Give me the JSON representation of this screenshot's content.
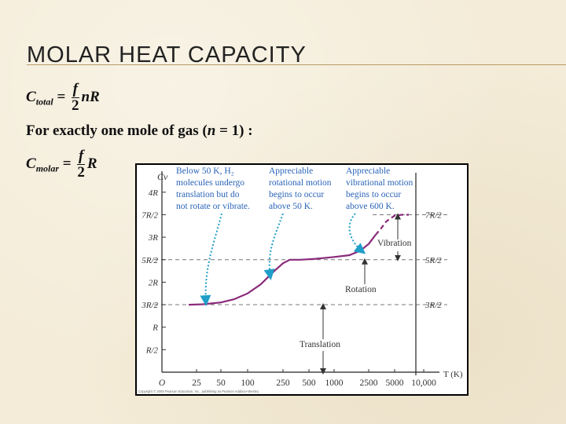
{
  "slide": {
    "title": "MOLAR HEAT CAPACITY",
    "eq1": {
      "lhs": "C",
      "sub": "total",
      "eq": " = ",
      "num": "f",
      "den": "2",
      "rhs": "nR"
    },
    "line2": {
      "pre": "For exactly one mole of gas (",
      "var": "n",
      "post": " = 1) :"
    },
    "eq3": {
      "lhs": "C",
      "sub": "molar",
      "eq": " = ",
      "num": "f",
      "den": "2",
      "rhs": "R"
    }
  },
  "colors": {
    "background": "#f4ecd8",
    "rule": "#b89a66",
    "curve": "#8a2a7a",
    "arrows": "#1e9ec8",
    "annotation_text": "#2a64b8"
  },
  "chart_data": {
    "type": "line",
    "ylabel": "Cv",
    "xlabel": "T (K)",
    "x_ticks": [
      "O",
      "25",
      "50",
      "100",
      "250",
      "500",
      "1000",
      "2500",
      "5000",
      "10,000"
    ],
    "y_ticks": [
      "4R",
      "7R/2",
      "3R",
      "5R/2",
      "2R",
      "3R/2",
      "R",
      "R/2"
    ],
    "y_ticks_right": [
      "7R/2",
      "5R/2",
      "3R/2"
    ],
    "y_unit": "R",
    "ylim": [
      0,
      4.25
    ],
    "x_scale": "log",
    "series": [
      {
        "x": [
          20,
          30,
          50,
          70,
          100,
          140,
          200,
          250,
          300,
          400,
          600,
          1000,
          1500,
          2000,
          2500,
          3000,
          3500,
          4000,
          5000,
          6000,
          7000
        ],
        "y": [
          1.5,
          1.51,
          1.55,
          1.62,
          1.75,
          1.95,
          2.25,
          2.42,
          2.5,
          2.5,
          2.52,
          2.56,
          2.6,
          2.7,
          2.85,
          3.05,
          3.2,
          3.35,
          3.48,
          3.5,
          3.5
        ]
      }
    ],
    "dashed_from_x": 3000,
    "annotations": [
      {
        "id": "below50",
        "lines": [
          "Below 50 K, H₂",
          "molecules undergo",
          "translation but do",
          "not rotate or vibrate."
        ]
      },
      {
        "id": "rotational",
        "lines": [
          "Appreciable",
          "rotational motion",
          "begins to occur",
          "above 50 K."
        ]
      },
      {
        "id": "vibrational",
        "lines": [
          "Appreciable",
          "vibrational motion",
          "begins to occur",
          "above 600 K."
        ]
      },
      {
        "id": "vibration",
        "lines": [
          "Vibration"
        ]
      },
      {
        "id": "rotation",
        "lines": [
          "Rotation"
        ]
      },
      {
        "id": "translation",
        "lines": [
          "Translation"
        ]
      }
    ],
    "copyright": "Copyright © 2008 Pearson Education, Inc., publishing as Pearson Addison-Wesley."
  }
}
